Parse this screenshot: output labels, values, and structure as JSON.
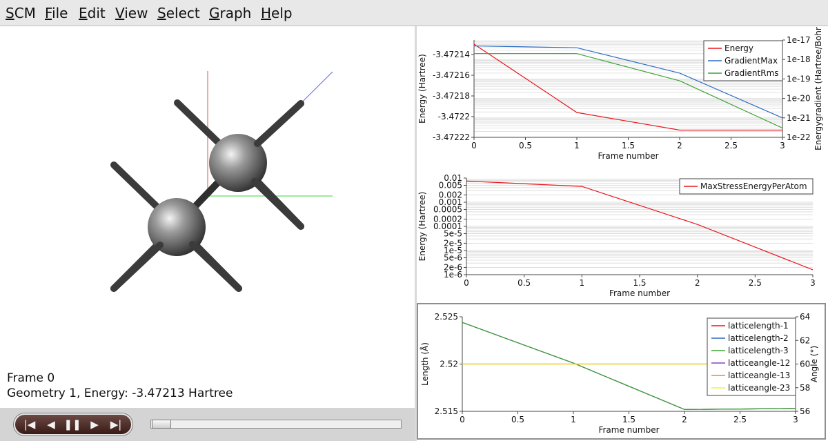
{
  "menu": [
    "SCM",
    "File",
    "Edit",
    "View",
    "Select",
    "Graph",
    "Help"
  ],
  "viewer": {
    "frame_label": "Frame 0",
    "geometry_label": "Geometry 1, Energy: -3.47213 Hartree"
  },
  "playback": {
    "buttons": [
      "first-frame",
      "previous-frame",
      "pause",
      "next-frame",
      "last-frame"
    ],
    "slider_position": 0
  },
  "chart_data": [
    {
      "type": "line",
      "xlabel": "Frame number",
      "ylabel": "Energy (Hartree)",
      "y2label": "Energygradient (Hartree/Bohr",
      "x_ticks": [
        "0",
        "0.5",
        "1",
        "1.5",
        "2",
        "2.5",
        "3"
      ],
      "y_ticks": [
        "-3.47214",
        "-3.47216",
        "-3.47218",
        "-3.4722",
        "-3.47222"
      ],
      "y2_ticks": [
        "1e-17",
        "1e-18",
        "1e-19",
        "1e-20",
        "1e-21",
        "1e-22"
      ],
      "xlim": [
        0,
        3
      ],
      "ylim": [
        -3.47222,
        -3.472126
      ],
      "y2_scale": "log",
      "y2lim": [
        1e-22,
        1e-17
      ],
      "legend_position": "top-right",
      "series": [
        {
          "name": "Energy",
          "axis": "left",
          "color": "#e8161b",
          "x": [
            0,
            1,
            2,
            3
          ],
          "values": [
            -3.47213,
            -3.472196,
            -3.472213,
            -3.472213
          ]
        },
        {
          "name": "GradientMax",
          "axis": "right",
          "color": "#2b6cc4",
          "x": [
            0,
            1,
            2,
            3
          ],
          "values": [
            5e-18,
            4e-18,
            2e-19,
            1e-21
          ]
        },
        {
          "name": "GradientRms",
          "axis": "right",
          "color": "#3aa335",
          "x": [
            0,
            1,
            2,
            3
          ],
          "values": [
            2e-18,
            2e-18,
            8e-20,
            3e-22
          ]
        }
      ]
    },
    {
      "type": "line",
      "xlabel": "Frame number",
      "ylabel": "Energy (Hartree)",
      "x_ticks": [
        "0",
        "0.5",
        "1",
        "1.5",
        "2",
        "2.5",
        "3"
      ],
      "y_ticks": [
        "0.01",
        "0.005",
        "0.002",
        "0.001",
        "0.0005",
        "0.0002",
        "0.0001",
        "5e-5",
        "2e-5",
        "1e-5",
        "5e-6",
        "2e-6",
        "1e-6"
      ],
      "xlim": [
        0,
        3
      ],
      "y_scale": "log",
      "ylim": [
        1e-06,
        0.01
      ],
      "legend_position": "top-right",
      "series": [
        {
          "name": "MaxStressEnergyPerAtom",
          "color": "#e8161b",
          "x": [
            0,
            1,
            2,
            3
          ],
          "values": [
            0.0075,
            0.0045,
            0.00012,
            1.6e-06
          ]
        }
      ]
    },
    {
      "type": "line",
      "xlabel": "Frame number",
      "ylabel": "Length (Å)",
      "y2label": "Angle (°)",
      "x_ticks": [
        "0",
        "0.5",
        "1",
        "1.5",
        "2",
        "2.5",
        "3"
      ],
      "y_ticks": [
        "2.525",
        "2.52",
        "2.515"
      ],
      "y2_ticks": [
        "64",
        "62",
        "60",
        "58",
        "56"
      ],
      "xlim": [
        0,
        3
      ],
      "ylim": [
        2.515,
        2.525
      ],
      "y2lim": [
        56,
        64
      ],
      "legend_position": "top-right",
      "series": [
        {
          "name": "latticelength-1",
          "axis": "left",
          "color": "#e8161b",
          "x": [
            0,
            1,
            2,
            3
          ],
          "values": [
            2.5244,
            2.5201,
            2.5152,
            2.5153
          ]
        },
        {
          "name": "latticelength-2",
          "axis": "left",
          "color": "#2b6cc4",
          "x": [
            0,
            1,
            2,
            3
          ],
          "values": [
            2.5244,
            2.5201,
            2.5152,
            2.5153
          ]
        },
        {
          "name": "latticelength-3",
          "axis": "left",
          "color": "#3aa335",
          "x": [
            0,
            1,
            2,
            3
          ],
          "values": [
            2.5244,
            2.5201,
            2.5152,
            2.5153
          ]
        },
        {
          "name": "latticeangle-12",
          "axis": "right",
          "color": "#8e3fbf",
          "x": [
            0,
            1,
            2,
            3
          ],
          "values": [
            60,
            60,
            60,
            60
          ]
        },
        {
          "name": "latticeangle-13",
          "axis": "right",
          "color": "#f08a1c",
          "x": [
            0,
            1,
            2,
            3
          ],
          "values": [
            60,
            60,
            60,
            60
          ]
        },
        {
          "name": "latticeangle-23",
          "axis": "right",
          "color": "#f2f23a",
          "x": [
            0,
            1,
            2,
            3
          ],
          "values": [
            60,
            60,
            60,
            60
          ]
        }
      ]
    }
  ]
}
